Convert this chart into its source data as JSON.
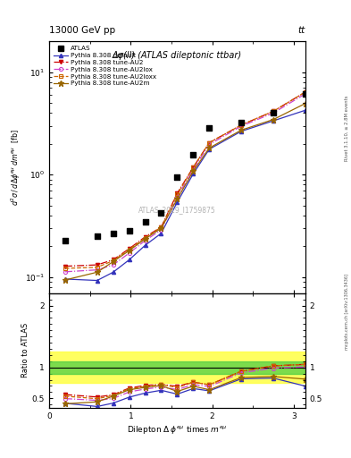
{
  "title_top": "13000 GeV pp",
  "title_top_right": "tt",
  "plot_title": "Δφ(ll) (ATLAS dileptonic ttbar)",
  "watermark": "ATLAS_2019_I1759875",
  "right_label": "mcplots.cern.ch [arXiv:1306.3436]",
  "right_label2": "Rivet 3.1.10, ≥ 2.8M events",
  "x_data": [
    0.196,
    0.589,
    0.785,
    0.982,
    1.178,
    1.374,
    1.571,
    1.767,
    1.963,
    2.356,
    2.749,
    3.142
  ],
  "atlas_y": [
    0.228,
    0.253,
    0.265,
    0.285,
    0.35,
    0.425,
    0.95,
    1.55,
    2.85,
    3.25,
    4.05,
    6.1
  ],
  "default_y": [
    0.096,
    0.093,
    0.112,
    0.148,
    0.205,
    0.268,
    0.54,
    1.02,
    1.77,
    2.65,
    3.35,
    4.25
  ],
  "au2_y": [
    0.128,
    0.132,
    0.148,
    0.19,
    0.248,
    0.308,
    0.66,
    1.18,
    2.05,
    3.05,
    4.15,
    6.4
  ],
  "au2lox_y": [
    0.113,
    0.118,
    0.132,
    0.172,
    0.228,
    0.29,
    0.61,
    1.12,
    1.97,
    2.97,
    4.0,
    6.15
  ],
  "au2loxx_y": [
    0.122,
    0.125,
    0.145,
    0.187,
    0.242,
    0.308,
    0.64,
    1.18,
    2.05,
    3.05,
    4.15,
    6.4
  ],
  "au2m_y": [
    0.094,
    0.112,
    0.142,
    0.182,
    0.237,
    0.3,
    0.58,
    1.08,
    1.82,
    2.72,
    3.45,
    4.95
  ],
  "ratio_default": [
    0.42,
    0.368,
    0.423,
    0.519,
    0.586,
    0.63,
    0.568,
    0.658,
    0.621,
    0.815,
    0.827,
    0.697
  ],
  "ratio_au2": [
    0.561,
    0.522,
    0.558,
    0.667,
    0.709,
    0.724,
    0.695,
    0.761,
    0.719,
    0.938,
    1.025,
    1.049
  ],
  "ratio_au2lox": [
    0.496,
    0.467,
    0.498,
    0.604,
    0.651,
    0.682,
    0.642,
    0.723,
    0.691,
    0.913,
    0.988,
    1.008
  ],
  "ratio_au2loxx": [
    0.535,
    0.494,
    0.547,
    0.656,
    0.691,
    0.724,
    0.674,
    0.761,
    0.719,
    0.938,
    1.025,
    1.049
  ],
  "ratio_au2m": [
    0.412,
    0.443,
    0.536,
    0.639,
    0.677,
    0.706,
    0.611,
    0.697,
    0.639,
    0.837,
    0.852,
    0.811
  ],
  "band_x": [
    0.0,
    0.196,
    0.589,
    0.785,
    0.982,
    1.178,
    1.374,
    1.571,
    1.767,
    1.963,
    2.356,
    2.749,
    3.142
  ],
  "band_green_lo": [
    0.9,
    0.9,
    0.9,
    0.9,
    0.9,
    0.9,
    0.9,
    0.9,
    0.9,
    0.9,
    0.9,
    0.9,
    0.9
  ],
  "band_green_hi": [
    1.1,
    1.1,
    1.1,
    1.1,
    1.1,
    1.1,
    1.1,
    1.1,
    1.1,
    1.1,
    1.1,
    1.1,
    1.1
  ],
  "band_yellow_lo": [
    0.75,
    0.75,
    0.75,
    0.75,
    0.75,
    0.75,
    0.75,
    0.75,
    0.75,
    0.75,
    0.75,
    0.75,
    0.75
  ],
  "band_yellow_hi": [
    1.25,
    1.25,
    1.25,
    1.25,
    1.25,
    1.25,
    1.25,
    1.25,
    1.25,
    1.25,
    1.25,
    1.25,
    1.25
  ],
  "color_default": "#3333bb",
  "color_au2": "#cc0000",
  "color_au2lox": "#cc44cc",
  "color_au2loxx": "#cc6600",
  "color_au2m": "#996600",
  "ylim_main": [
    0.07,
    20.0
  ],
  "ylim_ratio": [
    0.35,
    2.2
  ],
  "xlim": [
    0.0,
    3.14159
  ]
}
